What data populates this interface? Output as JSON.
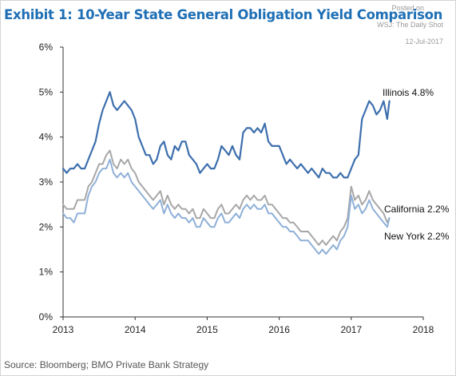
{
  "page": {
    "title": "Exhibit 1: 10-Year State General Obligation Yield Comparison",
    "posted_lines": [
      "Posted on",
      "WSJ: The Daily Shot",
      "12-Jul-2017"
    ],
    "source": "Source: Bloomberg; BMO Private Bank Strategy"
  },
  "chart_data": {
    "type": "line",
    "title": "Exhibit 1: 10-Year State General Obligation Yield Comparison",
    "xlabel": "",
    "ylabel": "",
    "xlim": [
      2013,
      2018
    ],
    "ylim": [
      0,
      6
    ],
    "x_ticks": [
      2013,
      2014,
      2015,
      2016,
      2017,
      2018
    ],
    "x_tick_labels": [
      "2013",
      "2014",
      "2015",
      "2016",
      "2017",
      "2018"
    ],
    "y_ticks": [
      0,
      1,
      2,
      3,
      4,
      5,
      6
    ],
    "y_tick_labels": [
      "0%",
      "1%",
      "2%",
      "3%",
      "4%",
      "5%",
      "6%"
    ],
    "grid": false,
    "legend": "inline labels at series ends",
    "series": [
      {
        "name": "Illinois",
        "label": "Illinois 4.8%",
        "color": "#3d6fad",
        "x": [
          2013.0,
          2013.05,
          2013.1,
          2013.15,
          2013.2,
          2013.25,
          2013.3,
          2013.35,
          2013.4,
          2013.45,
          2013.5,
          2013.55,
          2013.6,
          2013.65,
          2013.7,
          2013.75,
          2013.8,
          2013.85,
          2013.9,
          2013.95,
          2014.0,
          2014.05,
          2014.1,
          2014.15,
          2014.2,
          2014.25,
          2014.3,
          2014.35,
          2014.4,
          2014.45,
          2014.5,
          2014.55,
          2014.6,
          2014.65,
          2014.7,
          2014.75,
          2014.8,
          2014.85,
          2014.9,
          2014.95,
          2015.0,
          2015.05,
          2015.1,
          2015.15,
          2015.2,
          2015.25,
          2015.3,
          2015.35,
          2015.4,
          2015.45,
          2015.5,
          2015.55,
          2015.6,
          2015.65,
          2015.7,
          2015.75,
          2015.8,
          2015.85,
          2015.9,
          2015.95,
          2016.0,
          2016.05,
          2016.1,
          2016.15,
          2016.2,
          2016.25,
          2016.3,
          2016.35,
          2016.4,
          2016.45,
          2016.5,
          2016.55,
          2016.6,
          2016.65,
          2016.7,
          2016.75,
          2016.8,
          2016.85,
          2016.9,
          2016.95,
          2017.0,
          2017.05,
          2017.1,
          2017.15,
          2017.2,
          2017.25,
          2017.3,
          2017.35,
          2017.4,
          2017.45,
          2017.5,
          2017.53
        ],
        "values": [
          3.3,
          3.2,
          3.3,
          3.3,
          3.4,
          3.3,
          3.3,
          3.5,
          3.7,
          3.9,
          4.3,
          4.6,
          4.8,
          5.0,
          4.7,
          4.6,
          4.7,
          4.8,
          4.7,
          4.6,
          4.4,
          4.0,
          3.8,
          3.6,
          3.6,
          3.4,
          3.5,
          3.8,
          3.9,
          3.6,
          3.5,
          3.8,
          3.7,
          3.9,
          3.9,
          3.6,
          3.5,
          3.4,
          3.2,
          3.3,
          3.4,
          3.3,
          3.3,
          3.5,
          3.8,
          3.7,
          3.6,
          3.8,
          3.6,
          3.5,
          4.1,
          4.2,
          4.2,
          4.1,
          4.2,
          4.1,
          4.3,
          3.9,
          3.8,
          3.8,
          3.8,
          3.6,
          3.4,
          3.5,
          3.4,
          3.3,
          3.4,
          3.3,
          3.2,
          3.3,
          3.2,
          3.1,
          3.3,
          3.2,
          3.2,
          3.1,
          3.1,
          3.2,
          3.1,
          3.1,
          3.3,
          3.5,
          3.6,
          4.4,
          4.6,
          4.8,
          4.7,
          4.5,
          4.6,
          4.8,
          4.4,
          4.8
        ]
      },
      {
        "name": "California",
        "label": "California 2.2%",
        "color": "#a7a7a7",
        "x": [
          2013.0,
          2013.05,
          2013.1,
          2013.15,
          2013.2,
          2013.25,
          2013.3,
          2013.35,
          2013.4,
          2013.45,
          2013.5,
          2013.55,
          2013.6,
          2013.65,
          2013.7,
          2013.75,
          2013.8,
          2013.85,
          2013.9,
          2013.95,
          2014.0,
          2014.05,
          2014.1,
          2014.15,
          2014.2,
          2014.25,
          2014.3,
          2014.35,
          2014.4,
          2014.45,
          2014.5,
          2014.55,
          2014.6,
          2014.65,
          2014.7,
          2014.75,
          2014.8,
          2014.85,
          2014.9,
          2014.95,
          2015.0,
          2015.05,
          2015.1,
          2015.15,
          2015.2,
          2015.25,
          2015.3,
          2015.35,
          2015.4,
          2015.45,
          2015.5,
          2015.55,
          2015.6,
          2015.65,
          2015.7,
          2015.75,
          2015.8,
          2015.85,
          2015.9,
          2015.95,
          2016.0,
          2016.05,
          2016.1,
          2016.15,
          2016.2,
          2016.25,
          2016.3,
          2016.35,
          2016.4,
          2016.45,
          2016.5,
          2016.55,
          2016.6,
          2016.65,
          2016.7,
          2016.75,
          2016.8,
          2016.85,
          2016.9,
          2016.95,
          2017.0,
          2017.05,
          2017.1,
          2017.15,
          2017.2,
          2017.25,
          2017.3,
          2017.35,
          2017.4,
          2017.45,
          2017.5,
          2017.53
        ],
        "values": [
          2.5,
          2.4,
          2.4,
          2.4,
          2.6,
          2.6,
          2.6,
          2.9,
          3.0,
          3.2,
          3.4,
          3.4,
          3.6,
          3.7,
          3.4,
          3.3,
          3.5,
          3.4,
          3.5,
          3.3,
          3.2,
          3.0,
          2.9,
          2.8,
          2.7,
          2.6,
          2.7,
          2.8,
          2.5,
          2.7,
          2.5,
          2.4,
          2.5,
          2.4,
          2.4,
          2.3,
          2.4,
          2.2,
          2.2,
          2.4,
          2.3,
          2.2,
          2.2,
          2.4,
          2.5,
          2.3,
          2.3,
          2.4,
          2.5,
          2.4,
          2.6,
          2.7,
          2.6,
          2.7,
          2.6,
          2.6,
          2.7,
          2.5,
          2.5,
          2.4,
          2.3,
          2.2,
          2.2,
          2.1,
          2.1,
          2.0,
          1.9,
          1.9,
          1.9,
          1.8,
          1.7,
          1.6,
          1.7,
          1.6,
          1.7,
          1.8,
          1.7,
          1.9,
          2.0,
          2.2,
          2.9,
          2.6,
          2.7,
          2.5,
          2.6,
          2.8,
          2.6,
          2.5,
          2.4,
          2.3,
          2.1,
          2.2
        ]
      },
      {
        "name": "New York",
        "label": "New York 2.2%",
        "color": "#8fb0d8",
        "x": [
          2013.0,
          2013.05,
          2013.1,
          2013.15,
          2013.2,
          2013.25,
          2013.3,
          2013.35,
          2013.4,
          2013.45,
          2013.5,
          2013.55,
          2013.6,
          2013.65,
          2013.7,
          2013.75,
          2013.8,
          2013.85,
          2013.9,
          2013.95,
          2014.0,
          2014.05,
          2014.1,
          2014.15,
          2014.2,
          2014.25,
          2014.3,
          2014.35,
          2014.4,
          2014.45,
          2014.5,
          2014.55,
          2014.6,
          2014.65,
          2014.7,
          2014.75,
          2014.8,
          2014.85,
          2014.9,
          2014.95,
          2015.0,
          2015.05,
          2015.1,
          2015.15,
          2015.2,
          2015.25,
          2015.3,
          2015.35,
          2015.4,
          2015.45,
          2015.5,
          2015.55,
          2015.6,
          2015.65,
          2015.7,
          2015.75,
          2015.8,
          2015.85,
          2015.9,
          2015.95,
          2016.0,
          2016.05,
          2016.1,
          2016.15,
          2016.2,
          2016.25,
          2016.3,
          2016.35,
          2016.4,
          2016.45,
          2016.5,
          2016.55,
          2016.6,
          2016.65,
          2016.7,
          2016.75,
          2016.8,
          2016.85,
          2016.9,
          2016.95,
          2017.0,
          2017.05,
          2017.1,
          2017.15,
          2017.2,
          2017.25,
          2017.3,
          2017.35,
          2017.4,
          2017.45,
          2017.5,
          2017.53
        ],
        "values": [
          2.3,
          2.2,
          2.2,
          2.1,
          2.3,
          2.3,
          2.3,
          2.7,
          2.9,
          3.0,
          3.2,
          3.3,
          3.3,
          3.5,
          3.2,
          3.1,
          3.2,
          3.1,
          3.2,
          3.0,
          2.9,
          2.8,
          2.7,
          2.6,
          2.5,
          2.4,
          2.5,
          2.6,
          2.3,
          2.5,
          2.3,
          2.2,
          2.3,
          2.2,
          2.2,
          2.1,
          2.2,
          2.0,
          2.0,
          2.2,
          2.1,
          2.0,
          2.0,
          2.2,
          2.3,
          2.1,
          2.1,
          2.2,
          2.3,
          2.2,
          2.4,
          2.5,
          2.4,
          2.5,
          2.4,
          2.4,
          2.5,
          2.3,
          2.3,
          2.2,
          2.1,
          2.0,
          2.0,
          1.9,
          1.9,
          1.8,
          1.7,
          1.7,
          1.7,
          1.6,
          1.5,
          1.4,
          1.5,
          1.4,
          1.5,
          1.6,
          1.5,
          1.7,
          1.8,
          2.0,
          2.7,
          2.4,
          2.5,
          2.3,
          2.4,
          2.6,
          2.4,
          2.3,
          2.2,
          2.1,
          2.0,
          2.2
        ]
      }
    ]
  }
}
